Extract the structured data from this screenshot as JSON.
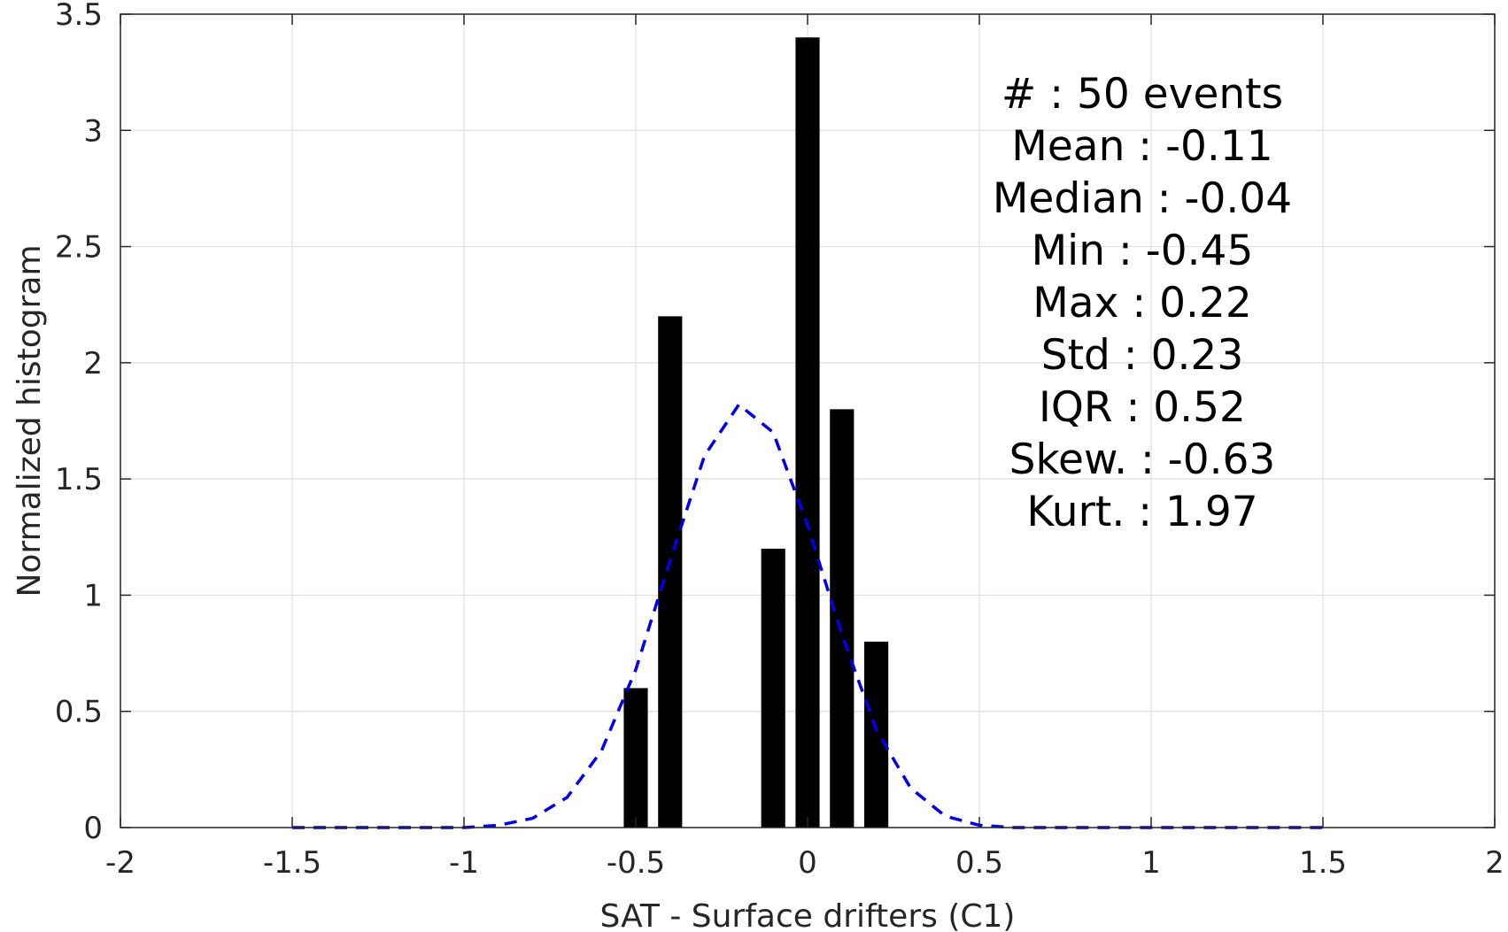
{
  "chart_data": {
    "type": "bar",
    "xlabel": "SAT - Surface drifters (C1)",
    "ylabel": "Normalized histogram",
    "xlim": [
      -2,
      2
    ],
    "ylim": [
      0,
      3.5
    ],
    "xticks": [
      -2,
      -1.5,
      -1,
      -0.5,
      0,
      0.5,
      1,
      1.5,
      2
    ],
    "xtick_labels": [
      "-2",
      "-1.5",
      "-1",
      "-0.5",
      "0",
      "0.5",
      "1",
      "1.5",
      "2"
    ],
    "yticks": [
      0,
      0.5,
      1,
      1.5,
      2,
      2.5,
      3,
      3.5
    ],
    "ytick_labels": [
      "0",
      "0.5",
      "1",
      "1.5",
      "2",
      "2.5",
      "3",
      "3.5"
    ],
    "grid": true,
    "bar_color": "#000000",
    "bar_width": 0.07,
    "bins": [
      -0.5,
      -0.4,
      -0.1,
      0,
      0.1,
      0.2
    ],
    "values": [
      0.6,
      2.2,
      1.2,
      3.4,
      1.8,
      0.8
    ],
    "fit_curve": {
      "style": "dashed",
      "color": "#0000ee",
      "x": [
        -1.5,
        -1.4,
        -1.3,
        -1.2,
        -1.1,
        -1.0,
        -0.9,
        -0.8,
        -0.7,
        -0.6,
        -0.5,
        -0.4,
        -0.3,
        -0.2,
        -0.1,
        0.0,
        0.1,
        0.2,
        0.3,
        0.4,
        0.5,
        0.6,
        0.7,
        0.8,
        0.9,
        1.0,
        1.1,
        1.2,
        1.3,
        1.4,
        1.5
      ],
      "y": [
        0,
        0,
        0,
        0,
        0,
        0,
        0.01,
        0.04,
        0.13,
        0.33,
        0.68,
        1.15,
        1.6,
        1.82,
        1.7,
        1.3,
        0.83,
        0.42,
        0.17,
        0.05,
        0.01,
        0,
        0,
        0,
        0,
        0,
        0,
        0,
        0,
        0,
        0
      ]
    },
    "annotations": [
      "#  : 50 events",
      "Mean : -0.11",
      "Median : -0.04",
      "Min : -0.45",
      "Max : 0.22",
      "Std : 0.23",
      "IQR : 0.52",
      "Skew. : -0.63",
      "Kurt. : 1.97"
    ]
  }
}
